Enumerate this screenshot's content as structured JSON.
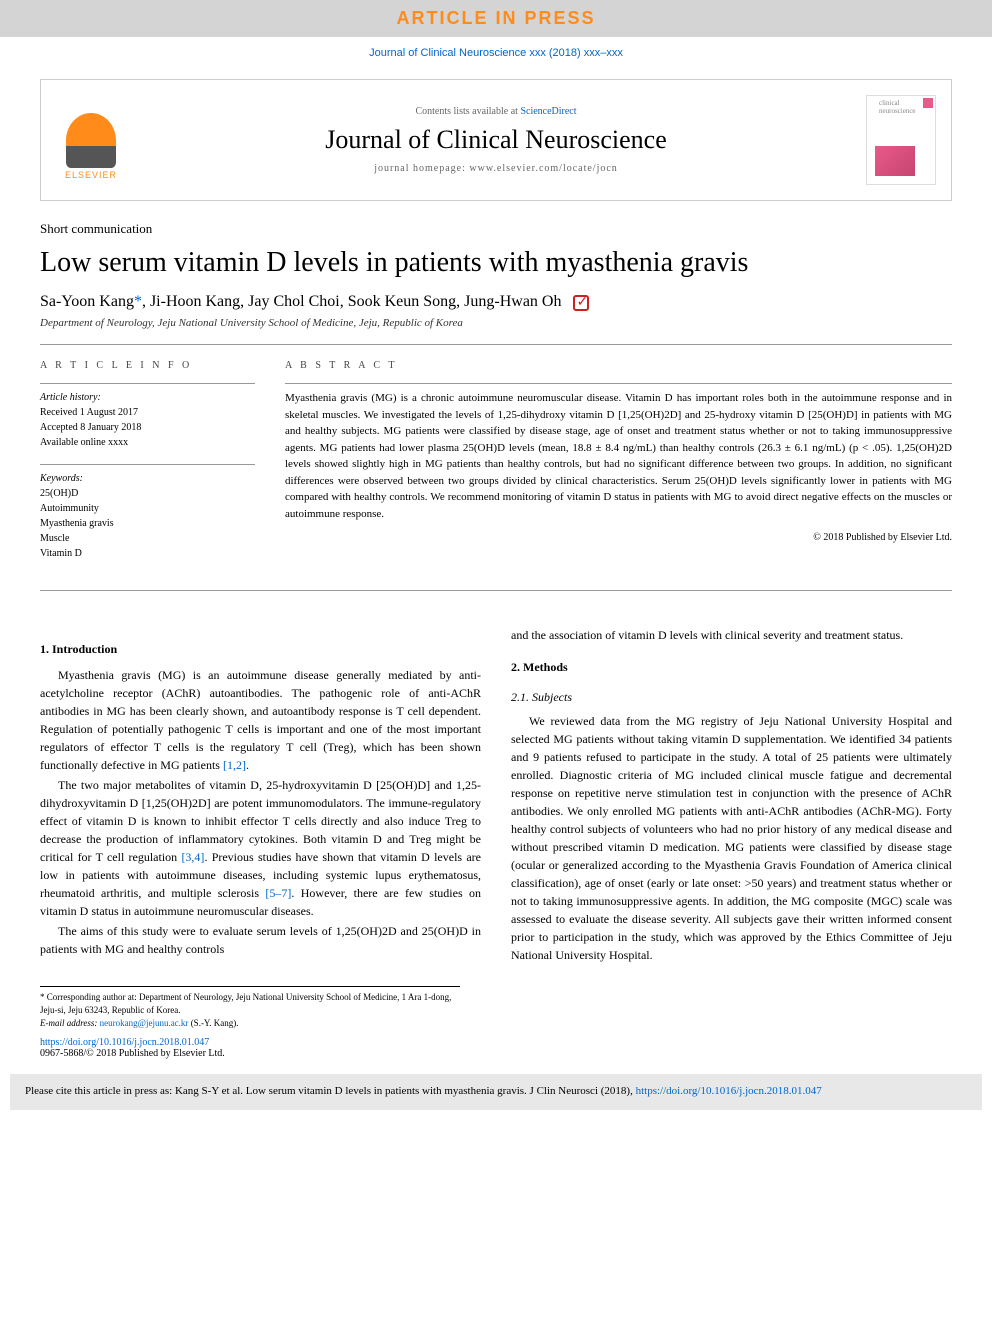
{
  "banner": "ARTICLE IN PRESS",
  "journalRef": "Journal of Clinical Neuroscience xxx (2018) xxx–xxx",
  "masthead": {
    "contentsPrefix": "Contents lists available at ",
    "scienceDirect": "ScienceDirect",
    "journalTitle": "Journal of Clinical Neuroscience",
    "homepage": "journal homepage: www.elsevier.com/locate/jocn",
    "elsevier": "ELSEVIER",
    "coverLabel": "clinical neuroscience"
  },
  "article": {
    "type": "Short communication",
    "title": "Low serum vitamin D levels in patients with myasthenia gravis",
    "authors": "Sa-Yoon Kang",
    "authorsSuffix": ", Ji-Hoon Kang, Jay Chol Choi, Sook Keun Song, Jung-Hwan Oh",
    "corrMark": "*",
    "affiliation": "Department of Neurology, Jeju National University School of Medicine, Jeju, Republic of Korea"
  },
  "info": {
    "heading": "A R T I C L E   I N F O",
    "historyLabel": "Article history:",
    "received": "Received 1 August 2017",
    "accepted": "Accepted 8 January 2018",
    "available": "Available online xxxx",
    "keywordsLabel": "Keywords:",
    "kw1": "25(OH)D",
    "kw2": "Autoimmunity",
    "kw3": "Myasthenia gravis",
    "kw4": "Muscle",
    "kw5": "Vitamin D"
  },
  "abstract": {
    "heading": "A B S T R A C T",
    "text": "Myasthenia gravis (MG) is a chronic autoimmune neuromuscular disease. Vitamin D has important roles both in the autoimmune response and in skeletal muscles. We investigated the levels of 1,25-dihydroxy vitamin D [1,25(OH)2D] and 25-hydroxy vitamin D [25(OH)D] in patients with MG and healthy subjects. MG patients were classified by disease stage, age of onset and treatment status whether or not to taking immunosuppressive agents. MG patients had lower plasma 25(OH)D levels (mean, 18.8 ± 8.4 ng/mL) than healthy controls (26.3 ± 6.1 ng/mL) (p < .05). 1,25(OH)2D levels showed slightly high in MG patients than healthy controls, but had no significant difference between two groups. In addition, no significant differences were observed between two groups divided by clinical characteristics. Serum 25(OH)D levels significantly lower in patients with MG compared with healthy controls. We recommend monitoring of vitamin D status in patients with MG to avoid direct negative effects on the muscles or autoimmune response.",
    "copyright": "© 2018 Published by Elsevier Ltd."
  },
  "body": {
    "introHead": "1. Introduction",
    "introP1": "Myasthenia gravis (MG) is an autoimmune disease generally mediated by anti-acetylcholine receptor (AChR) autoantibodies. The pathogenic role of anti-AChR antibodies in MG has been clearly shown, and autoantibody response is T cell dependent. Regulation of potentially pathogenic T cells is important and one of the most important regulators of effector T cells is the regulatory T cell (Treg), which has been shown functionally defective in MG patients ",
    "introR1": "[1,2]",
    "introP2a": "The two major metabolites of vitamin D, 25-hydroxyvitamin D [25(OH)D] and 1,25-dihydroxyvitamin D [1,25(OH)2D] are potent immunomodulators. The immune-regulatory effect of vitamin D is known to inhibit effector T cells directly and also induce Treg to decrease the production of inflammatory cytokines. Both vitamin D and Treg might be critical for T cell regulation ",
    "introR2": "[3,4]",
    "introP2b": ". Previous studies have shown that vitamin D levels are low in patients with autoimmune diseases, including systemic lupus erythematosus, rheumatoid arthritis, and multiple sclerosis ",
    "introR3": "[5–7]",
    "introP2c": ". However, there are few studies on vitamin D status in autoimmune neuromuscular diseases.",
    "introP3": "The aims of this study were to evaluate serum levels of 1,25(OH)2D and 25(OH)D in patients with MG and healthy controls",
    "col2Bridge": "and the association of vitamin D levels with clinical severity and treatment status.",
    "methodsHead": "2. Methods",
    "subjectsHead": "2.1. Subjects",
    "subjectsP": "We reviewed data from the MG registry of Jeju National University Hospital and selected MG patients without taking vitamin D supplementation. We identified 34 patients and 9 patients refused to participate in the study. A total of 25 patients were ultimately enrolled. Diagnostic criteria of MG included clinical muscle fatigue and decremental response on repetitive nerve stimulation test in conjunction with the presence of AChR antibodies. We only enrolled MG patients with anti-AChR antibodies (AChR-MG). Forty healthy control subjects of volunteers who had no prior history of any medical disease and without prescribed vitamin D medication. MG patients were classified by disease stage (ocular or generalized according to the Myasthenia Gravis Foundation of America clinical classification), age of onset (early or late onset: >50 years) and treatment status whether or not to taking immunosuppressive agents. In addition, the MG composite (MGC) scale was assessed to evaluate the disease severity. All subjects gave their written informed consent prior to participation in the study, which was approved by the Ethics Committee of Jeju National University Hospital."
  },
  "footnote": {
    "corr": "* Corresponding author at: Department of Neurology, Jeju National University School of Medicine, 1 Ara 1-dong, Jeju-si, Jeju 63243, Republic of Korea.",
    "emailLabel": "E-mail address: ",
    "email": "neurokang@jejunu.ac.kr",
    "emailSuffix": " (S.-Y. Kang)."
  },
  "doi": {
    "link": "https://doi.org/10.1016/j.jocn.2018.01.047",
    "issn": "0967-5868/© 2018 Published by Elsevier Ltd."
  },
  "citeBox": {
    "prefix": "Please cite this article in press as: Kang S-Y et al. Low serum vitamin D levels in patients with myasthenia gravis. J Clin Neurosci (2018), ",
    "link": "https://doi.org/10.1016/j.jocn.2018.01.047"
  },
  "colors": {
    "bannerBg": "#d4d4d4",
    "bannerText": "#ff8c1a",
    "link": "#0066cc",
    "elsevier": "#ff8c1a",
    "citeBg": "#e8e8e8"
  },
  "fonts": {
    "body": "Georgia, serif",
    "bodySize": 12,
    "titleSize": 28,
    "abstractSize": 11
  }
}
